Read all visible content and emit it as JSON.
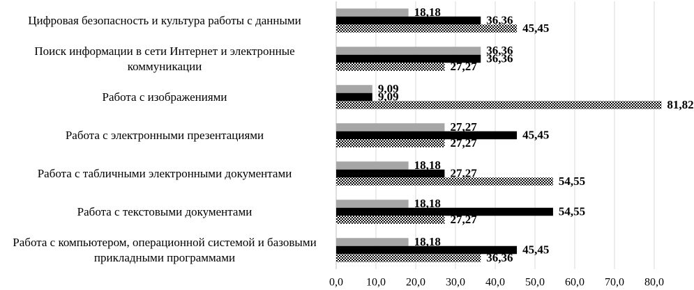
{
  "chart_data": {
    "type": "hbar",
    "categories": [
      "Цифровая безопасность и культура работы с данными",
      "Поиск информации в сети Интернет и электронные коммуникации",
      "Работа с изображениями",
      "Работа с электронными презентациями",
      "Работа с табличными электронными документами",
      "Работа с текстовыми документами",
      "Работа с компьютером, операционной системой и базовыми прикладными программами"
    ],
    "series": [
      {
        "color": "#a6a6a6",
        "values": [
          18.18,
          36.36,
          9.09,
          27.27,
          18.18,
          18.18,
          18.18
        ],
        "value_labels": [
          "18,18",
          "36,36",
          "9,09",
          "27,27",
          "18,18",
          "18,18",
          "18,18"
        ]
      },
      {
        "color": "#000000",
        "values": [
          36.36,
          36.36,
          9.09,
          45.45,
          27.27,
          54.55,
          45.45
        ],
        "value_labels": [
          "36,36",
          "36,36",
          "9,09",
          "45,45",
          "27,27",
          "54,55",
          "45,45"
        ]
      },
      {
        "color": "#000000",
        "pattern": "checker",
        "values": [
          45.45,
          27.27,
          81.82,
          27.27,
          54.55,
          27.27,
          36.36
        ],
        "value_labels": [
          "45,45",
          "27,27",
          "81,82",
          "27,27",
          "54,55",
          "27,27",
          "36,36"
        ]
      }
    ],
    "xlim": [
      0,
      80
    ],
    "xticks": [
      {
        "value": 0,
        "label": "0,0"
      },
      {
        "value": 10,
        "label": "10,0"
      },
      {
        "value": 20,
        "label": "20,0"
      },
      {
        "value": 30,
        "label": "30,0"
      },
      {
        "value": 40,
        "label": "40,0"
      },
      {
        "value": 50,
        "label": "50,0"
      },
      {
        "value": 60,
        "label": "60,0"
      },
      {
        "value": 70,
        "label": "70,0"
      },
      {
        "value": 80,
        "label": "80,0"
      }
    ],
    "grid": true
  }
}
